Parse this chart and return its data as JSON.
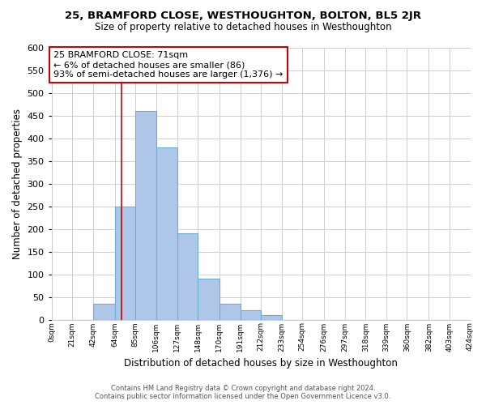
{
  "title": "25, BRAMFORD CLOSE, WESTHOUGHTON, BOLTON, BL5 2JR",
  "subtitle": "Size of property relative to detached houses in Westhoughton",
  "xlabel": "Distribution of detached houses by size in Westhoughton",
  "ylabel": "Number of detached properties",
  "bar_edges": [
    0,
    21,
    42,
    64,
    85,
    106,
    127,
    148,
    170,
    191,
    212,
    233,
    254,
    276,
    297,
    318,
    339,
    360,
    382,
    403,
    424
  ],
  "bar_heights": [
    0,
    0,
    35,
    250,
    460,
    380,
    190,
    90,
    35,
    20,
    10,
    0,
    0,
    0,
    0,
    0,
    0,
    0,
    0,
    0
  ],
  "tick_labels": [
    "0sqm",
    "21sqm",
    "42sqm",
    "64sqm",
    "85sqm",
    "106sqm",
    "127sqm",
    "148sqm",
    "170sqm",
    "191sqm",
    "212sqm",
    "233sqm",
    "254sqm",
    "276sqm",
    "297sqm",
    "318sqm",
    "339sqm",
    "360sqm",
    "382sqm",
    "403sqm",
    "424sqm"
  ],
  "bar_color": "#aec6e8",
  "bar_edge_color": "#6aaed6",
  "grid_color": "#d0d0d0",
  "property_line_x": 71,
  "property_line_color": "#cc0000",
  "annotation_line1": "25 BRAMFORD CLOSE: 71sqm",
  "annotation_line2": "← 6% of detached houses are smaller (86)",
  "annotation_line3": "93% of semi-detached houses are larger (1,376) →",
  "ylim": [
    0,
    600
  ],
  "yticks": [
    0,
    50,
    100,
    150,
    200,
    250,
    300,
    350,
    400,
    450,
    500,
    550,
    600
  ],
  "footer_line1": "Contains HM Land Registry data © Crown copyright and database right 2024.",
  "footer_line2": "Contains public sector information licensed under the Open Government Licence v3.0.",
  "bg_color": "#ffffff"
}
